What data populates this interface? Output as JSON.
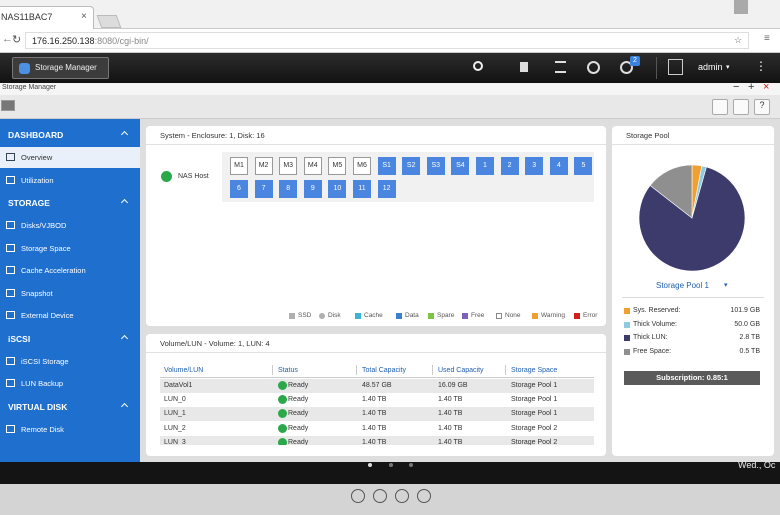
{
  "browser": {
    "tab_title": "NAS11BAC7",
    "url_host": "176.16.250.138",
    "url_rest": ":8080/cgi-bin/"
  },
  "topbar": {
    "app_tab": "Storage Manager",
    "notifications": 2,
    "user": "admin"
  },
  "window": {
    "title": "Storage Manager"
  },
  "sidebar": {
    "sections": [
      {
        "title": "DASHBOARD",
        "items": [
          "Overview",
          "Utilization"
        ]
      },
      {
        "title": "STORAGE",
        "items": [
          "Disks/VJBOD",
          "Storage Space",
          "Cache Acceleration",
          "Snapshot",
          "External Device"
        ]
      },
      {
        "title": "iSCSI",
        "items": [
          "iSCSI Storage",
          "LUN Backup"
        ]
      },
      {
        "title": "VIRTUAL DISK",
        "items": [
          "Remote Disk"
        ]
      }
    ]
  },
  "system": {
    "title": "System - Enclosure: 1, Disk: 16",
    "host": "NAS Host",
    "disk_groups": [
      {
        "color": "#ffffff",
        "labels": [
          "M1",
          "M2",
          "M3",
          "M4",
          "M5",
          "M6"
        ]
      },
      {
        "color": "#4a86e0",
        "labels": [
          "S1",
          "S2",
          "S3",
          "S4",
          "1",
          "2",
          "3",
          "4",
          "5",
          "6",
          "7",
          "8",
          "9",
          "10",
          "11",
          "12"
        ]
      }
    ],
    "legend": [
      {
        "label": "SSD",
        "color": "#b0b0b0"
      },
      {
        "label": "Disk",
        "color": "#b0b0b0"
      },
      {
        "label": "Cache",
        "color": "#39b4d6"
      },
      {
        "label": "Data",
        "color": "#3f7fd0"
      },
      {
        "label": "Spare",
        "color": "#7cc243"
      },
      {
        "label": "Free",
        "color": "#7e62b8"
      },
      {
        "label": "None",
        "color": "#ffffff"
      },
      {
        "label": "Warning",
        "color": "#f0a030"
      },
      {
        "label": "Error",
        "color": "#d02020"
      }
    ]
  },
  "volumes": {
    "title": "Volume/LUN - Volume: 1, LUN: 4",
    "columns": [
      "Volume/LUN",
      "Status",
      "Total Capacity",
      "Used Capacity",
      "Storage Space"
    ],
    "rows": [
      [
        "DataVol1",
        "Ready",
        "48.57 GB",
        "16.09 GB",
        "Storage Pool 1"
      ],
      [
        "LUN_0",
        "Ready",
        "1.40 TB",
        "1.40 TB",
        "Storage Pool 1"
      ],
      [
        "LUN_1",
        "Ready",
        "1.40 TB",
        "1.40 TB",
        "Storage Pool 1"
      ],
      [
        "LUN_2",
        "Ready",
        "1.40 TB",
        "1.40 TB",
        "Storage Pool 2"
      ],
      [
        "LUN_3",
        "Ready",
        "1.40 TB",
        "1.40 TB",
        "Storage Pool 2"
      ]
    ]
  },
  "chart_data": {
    "type": "pie",
    "title": "Storage Pool",
    "subtitle": "Storage Pool 1",
    "categories": [
      "Sys. Reserved:",
      "Thick Volume:",
      "Thick LUN:",
      "Free Space:"
    ],
    "values": [
      101.9,
      50.0,
      2800,
      500
    ],
    "value_labels": [
      "101.9 GB",
      "50.0 GB",
      "2.8 TB",
      "0.5 TB"
    ],
    "colors": [
      "#f0a030",
      "#8ecbe3",
      "#3d3b6c",
      "#8f8f8f"
    ],
    "annotation": "Subscription: 0.85:1"
  },
  "taskbar": {
    "clock": "Wed., Oc"
  }
}
